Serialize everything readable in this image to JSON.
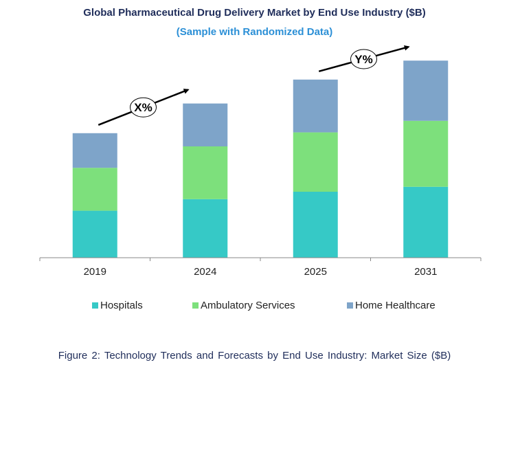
{
  "title": "Global Pharmaceutical Drug Delivery Market by End Use Industry ($B)",
  "subtitle": "(Sample with Randomized Data)",
  "caption": "Figure 2: Technology  Trends  and Forecasts by End Use Industry:  Market Size ($B)",
  "colors": {
    "hospitals": "#36c9c6",
    "ambulatory": "#7de07c",
    "home": "#7ea4c9"
  },
  "chart_data": {
    "type": "bar",
    "stacked": true,
    "categories": [
      "2019",
      "2024",
      "2025",
      "2031"
    ],
    "series": [
      {
        "name": "Hospitals",
        "values": [
          57,
          71,
          80,
          86
        ]
      },
      {
        "name": "Ambulatory Services",
        "values": [
          52,
          64,
          72,
          80
        ]
      },
      {
        "name": "Home Healthcare",
        "values": [
          42,
          52,
          64,
          73
        ]
      }
    ],
    "ylim": [
      0,
      240
    ],
    "grid": false,
    "legend": "bottom",
    "annotations": [
      {
        "text": "X%"
      },
      {
        "text": "Y%"
      }
    ]
  }
}
